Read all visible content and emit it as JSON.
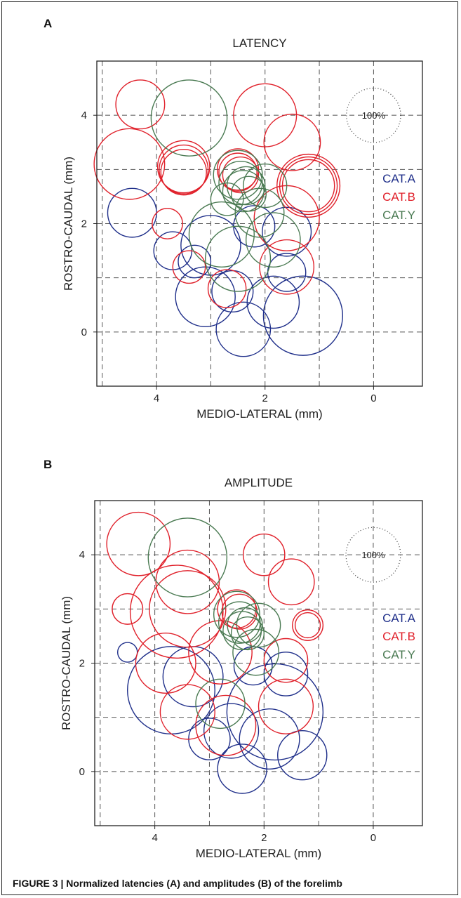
{
  "figure": {
    "caption": "FIGURE 3 | Normalized latencies (A) and amplitudes (B) of the forelimb"
  },
  "colors": {
    "CAT.A": "#1f2f8a",
    "CAT.B": "#e0202a",
    "CAT.Y": "#4a7a52",
    "ref": "#333333"
  },
  "chart_data": [
    {
      "panel": "A",
      "type": "scatter",
      "title": "LATENCY",
      "xlabel": "MEDIO-LATERAL (mm)",
      "ylabel": "ROSTRO-CAUDAL (mm)",
      "xlim": [
        5.1,
        -0.9
      ],
      "ylim": [
        -1.0,
        5.0
      ],
      "xticks": [
        "4",
        "2",
        "0"
      ],
      "yticks": [
        "0",
        "2",
        "4"
      ],
      "grid": "dashed, every 1 mm",
      "reference": {
        "label": "100%",
        "x": 0,
        "y": 4,
        "r": 0.5
      },
      "legend": [
        "CAT.A",
        "CAT.B",
        "CAT.Y"
      ],
      "legend_placement": "right",
      "series": [
        {
          "name": "CAT.A",
          "points": [
            [
              4.45,
              2.2,
              0.45
            ],
            [
              3.7,
              1.5,
              0.35
            ],
            [
              3.0,
              1.6,
              0.55
            ],
            [
              3.3,
              1.3,
              0.3
            ],
            [
              3.1,
              0.65,
              0.55
            ],
            [
              2.6,
              0.75,
              0.38
            ],
            [
              2.4,
              0.05,
              0.5
            ],
            [
              1.85,
              0.55,
              0.48
            ],
            [
              1.3,
              0.3,
              0.73
            ],
            [
              1.6,
              1.1,
              0.35
            ],
            [
              1.6,
              1.85,
              0.45
            ],
            [
              2.2,
              1.95,
              0.38
            ]
          ]
        },
        {
          "name": "CAT.B",
          "points": [
            [
              4.3,
              4.2,
              0.45
            ],
            [
              4.5,
              3.1,
              0.65
            ],
            [
              3.5,
              3.05,
              0.48
            ],
            [
              3.5,
              3.0,
              0.45
            ],
            [
              3.5,
              2.95,
              0.42
            ],
            [
              2.5,
              3.0,
              0.38
            ],
            [
              2.5,
              2.95,
              0.35
            ],
            [
              2.45,
              2.9,
              0.33
            ],
            [
              2.0,
              4.0,
              0.58
            ],
            [
              1.5,
              3.5,
              0.52
            ],
            [
              1.2,
              2.7,
              0.58
            ],
            [
              1.2,
              2.7,
              0.53
            ],
            [
              1.2,
              2.7,
              0.48
            ],
            [
              1.6,
              2.1,
              0.6
            ],
            [
              1.6,
              1.2,
              0.5
            ],
            [
              3.8,
              2.0,
              0.28
            ],
            [
              3.4,
              1.2,
              0.3
            ],
            [
              2.7,
              0.8,
              0.35
            ]
          ]
        },
        {
          "name": "CAT.Y",
          "points": [
            [
              3.4,
              3.95,
              0.7
            ],
            [
              2.5,
              2.9,
              0.45
            ],
            [
              2.45,
              2.75,
              0.4
            ],
            [
              2.4,
              2.6,
              0.38
            ],
            [
              2.35,
              2.7,
              0.35
            ],
            [
              2.3,
              2.55,
              0.32
            ],
            [
              2.0,
              2.7,
              0.4
            ],
            [
              2.1,
              2.2,
              0.45
            ],
            [
              2.7,
              2.45,
              0.3
            ],
            [
              2.5,
              1.35,
              0.6
            ],
            [
              2.8,
              1.8,
              0.6
            ],
            [
              1.85,
              1.7,
              0.5
            ]
          ]
        }
      ]
    },
    {
      "panel": "B",
      "type": "scatter",
      "title": "AMPLITUDE",
      "xlabel": "MEDIO-LATERAL (mm)",
      "ylabel": "ROSTRO-CAUDAL (mm)",
      "xlim": [
        5.1,
        -0.9
      ],
      "ylim": [
        -1.0,
        5.0
      ],
      "xticks": [
        "4",
        "2",
        "0"
      ],
      "yticks": [
        "0",
        "2",
        "4"
      ],
      "grid": "dashed, every 1 mm",
      "reference": {
        "label": "100%",
        "x": 0,
        "y": 4,
        "r": 0.5
      },
      "legend": [
        "CAT.A",
        "CAT.B",
        "CAT.Y"
      ],
      "legend_placement": "right",
      "series": [
        {
          "name": "CAT.A",
          "points": [
            [
              4.5,
              2.2,
              0.18
            ],
            [
              3.7,
              1.5,
              0.8
            ],
            [
              3.3,
              1.75,
              0.55
            ],
            [
              3.0,
              0.6,
              0.38
            ],
            [
              2.6,
              0.75,
              0.5
            ],
            [
              2.4,
              0.05,
              0.45
            ],
            [
              1.9,
              0.6,
              0.55
            ],
            [
              1.3,
              0.3,
              0.45
            ],
            [
              1.6,
              1.8,
              0.4
            ],
            [
              2.2,
              1.95,
              0.35
            ],
            [
              1.8,
              1.1,
              0.88
            ]
          ]
        },
        {
          "name": "CAT.B",
          "points": [
            [
              4.3,
              4.2,
              0.58
            ],
            [
              4.5,
              3.0,
              0.28
            ],
            [
              3.4,
              3.5,
              0.58
            ],
            [
              3.4,
              3.0,
              0.7
            ],
            [
              3.6,
              2.95,
              0.85
            ],
            [
              3.8,
              2.0,
              0.55
            ],
            [
              2.5,
              3.0,
              0.35
            ],
            [
              2.45,
              2.95,
              0.32
            ],
            [
              2.0,
              4.0,
              0.38
            ],
            [
              1.5,
              3.5,
              0.42
            ],
            [
              1.2,
              2.7,
              0.28
            ],
            [
              1.2,
              2.7,
              0.23
            ],
            [
              1.6,
              2.05,
              0.4
            ],
            [
              1.6,
              1.2,
              0.5
            ],
            [
              2.8,
              2.2,
              0.58
            ],
            [
              3.4,
              1.1,
              0.5
            ],
            [
              2.7,
              0.85,
              0.55
            ]
          ]
        },
        {
          "name": "CAT.Y",
          "points": [
            [
              3.4,
              3.95,
              0.72
            ],
            [
              2.5,
              2.9,
              0.42
            ],
            [
              2.45,
              2.75,
              0.38
            ],
            [
              2.4,
              2.6,
              0.35
            ],
            [
              2.35,
              2.7,
              0.32
            ],
            [
              2.3,
              2.55,
              0.3
            ],
            [
              2.1,
              2.7,
              0.4
            ],
            [
              2.15,
              2.2,
              0.42
            ],
            [
              2.8,
              1.25,
              0.45
            ]
          ]
        }
      ]
    }
  ]
}
